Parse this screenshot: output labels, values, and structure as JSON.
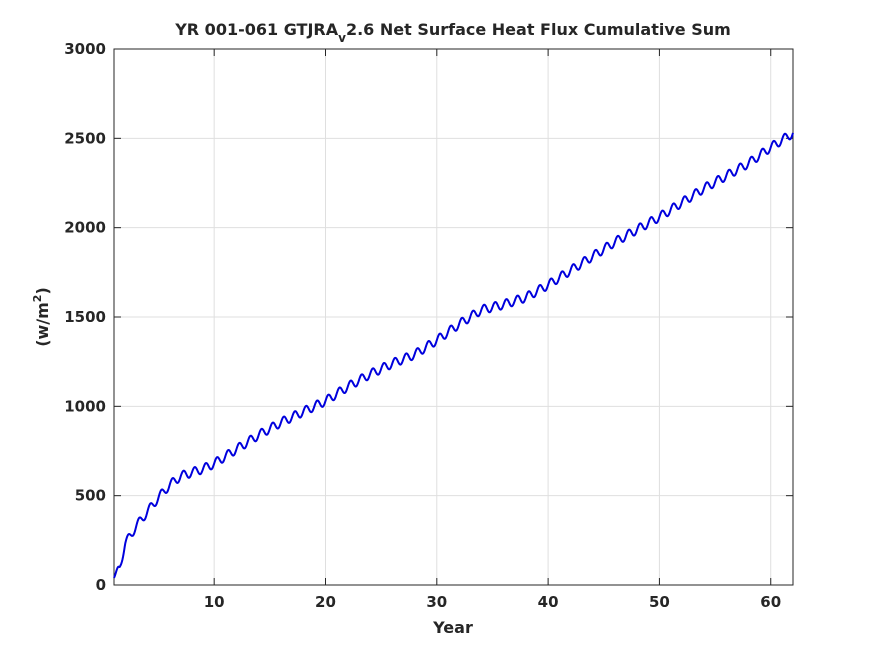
{
  "chart_data": {
    "type": "line",
    "title_parts": {
      "prefix": "YR 001-061 GTJRA",
      "subscript": "v",
      "suffix": "2.6 Net Surface Heat Flux  Cumulative Sum"
    },
    "xlabel": "Year",
    "ylabel_parts": {
      "base": "(w/m",
      "superscript": "2",
      "close": ")"
    },
    "xlim": [
      1,
      62
    ],
    "ylim": [
      0,
      3000
    ],
    "xticks": [
      10,
      20,
      30,
      40,
      50,
      60
    ],
    "yticks": [
      0,
      500,
      1000,
      1500,
      2000,
      2500,
      3000
    ],
    "grid": true,
    "line_color": "#0000dd",
    "seasonal_amplitude": 25,
    "series": [
      {
        "x": [
          1,
          1.5,
          2,
          3,
          4,
          5,
          6,
          7,
          8,
          9,
          10,
          12,
          14,
          16,
          18,
          20,
          22,
          24,
          26,
          28,
          30,
          32,
          34,
          36,
          38,
          40,
          42,
          44,
          46,
          48,
          50,
          52,
          54,
          56,
          58,
          60,
          62
        ],
        "y": [
          40,
          100,
          230,
          330,
          410,
          490,
          560,
          610,
          630,
          650,
          680,
          760,
          840,
          910,
          970,
          1030,
          1110,
          1180,
          1240,
          1290,
          1370,
          1460,
          1540,
          1570,
          1610,
          1680,
          1760,
          1840,
          1920,
          1990,
          2060,
          2140,
          2220,
          2290,
          2360,
          2450,
          2530
        ]
      }
    ]
  }
}
